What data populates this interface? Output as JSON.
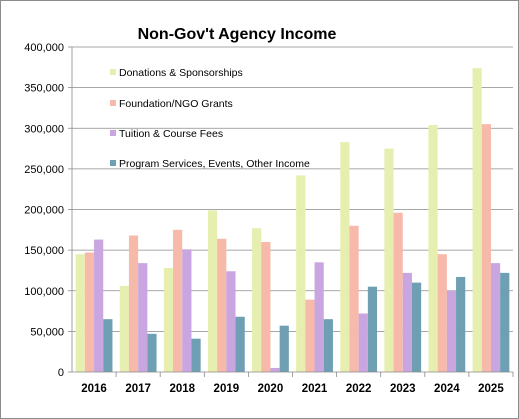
{
  "chart_data": {
    "type": "bar",
    "title": "Non-Gov't Agency Income",
    "xlabel": "",
    "ylabel": "",
    "ylim": [
      0,
      400000
    ],
    "yticks": [
      0,
      50000,
      100000,
      150000,
      200000,
      250000,
      300000,
      350000,
      400000
    ],
    "ytick_labels": [
      "0",
      "50,000",
      "100,000",
      "150,000",
      "200,000",
      "250,000",
      "300,000",
      "350,000",
      "400,000"
    ],
    "grid": true,
    "legend_position": "top-left inside plot",
    "categories": [
      "2016",
      "2017",
      "2018",
      "2019",
      "2020",
      "2021",
      "2022",
      "2023",
      "2024",
      "2025"
    ],
    "series": [
      {
        "name": "Donations & Sponsorships",
        "color": "#e6efb0",
        "values": [
          145000,
          106000,
          128000,
          199000,
          177000,
          242000,
          283000,
          275000,
          304000,
          374000
        ]
      },
      {
        "name": "Foundation/NGO Grants",
        "color": "#f6b9aa",
        "values": [
          147000,
          168000,
          175000,
          164000,
          160000,
          89000,
          180000,
          196000,
          145000,
          305000
        ]
      },
      {
        "name": "Tuition & Course Fees",
        "color": "#c9a6df",
        "values": [
          163000,
          134000,
          151000,
          124000,
          5000,
          135000,
          72000,
          122000,
          100000,
          134000
        ]
      },
      {
        "name": "Program Services, Events, Other Income",
        "color": "#6e9fb3",
        "values": [
          65000,
          47000,
          41000,
          68000,
          57000,
          65000,
          105000,
          110000,
          117000,
          122000
        ]
      }
    ]
  }
}
